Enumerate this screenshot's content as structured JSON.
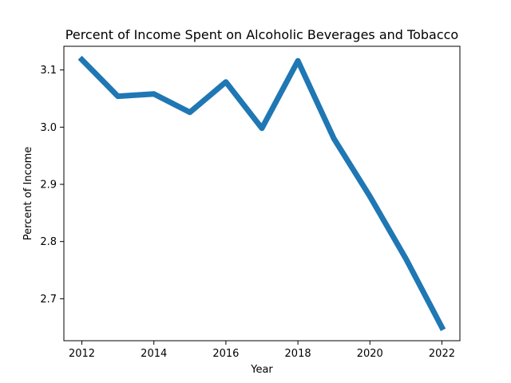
{
  "chart_data": {
    "type": "line",
    "title": "Percent of Income Spent on Alcoholic Beverages and Tobacco",
    "xlabel": "Year",
    "ylabel": "Percent of Income",
    "x": [
      2012,
      2013,
      2014,
      2015,
      2016,
      2017,
      2018,
      2019,
      2020,
      2021,
      2022
    ],
    "series": [
      {
        "values": [
          3.118,
          3.054,
          3.058,
          3.026,
          3.079,
          2.998,
          3.116,
          2.98,
          2.879,
          2.77,
          2.65
        ],
        "color": "#1f77b4"
      }
    ],
    "xticks": [
      2012,
      2014,
      2016,
      2018,
      2020,
      2022
    ],
    "xtick_labels": [
      "2012",
      "2014",
      "2016",
      "2018",
      "2020",
      "2022"
    ],
    "yticks": [
      2.7,
      2.8,
      2.9,
      3.0,
      3.1
    ],
    "ytick_labels": [
      "2.7",
      "2.8",
      "2.9",
      "3.0",
      "3.1"
    ],
    "xlim": [
      2011.5,
      2022.5
    ],
    "ylim": [
      2.6266,
      3.1414
    ],
    "grid": false,
    "legend": false
  }
}
